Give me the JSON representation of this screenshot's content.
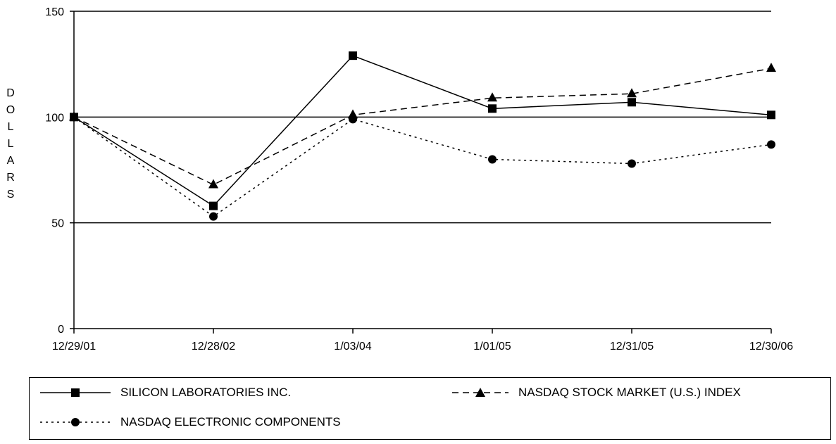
{
  "chart_data": {
    "type": "line",
    "categories": [
      "12/29/01",
      "12/28/02",
      "1/03/04",
      "1/01/05",
      "12/31/05",
      "12/30/06"
    ],
    "ylabel": "DOLLARS",
    "ylim": [
      0,
      150
    ],
    "yticks": [
      0,
      50,
      100,
      150
    ],
    "gridlines": [
      50,
      100,
      150
    ],
    "legend_position": "bottom",
    "series": [
      {
        "name": "SILICON LABORATORIES INC.",
        "values": [
          100,
          58,
          129,
          104,
          107,
          101
        ],
        "marker": "square",
        "line": "solid"
      },
      {
        "name": "NASDAQ STOCK MARKET (U.S.) INDEX",
        "values": [
          100,
          68,
          101,
          109,
          111,
          123
        ],
        "marker": "triangle",
        "line": "dashed"
      },
      {
        "name": "NASDAQ ELECTRONIC COMPONENTS",
        "values": [
          100,
          53,
          99,
          80,
          78,
          87
        ],
        "marker": "circle",
        "line": "dotted"
      }
    ]
  }
}
